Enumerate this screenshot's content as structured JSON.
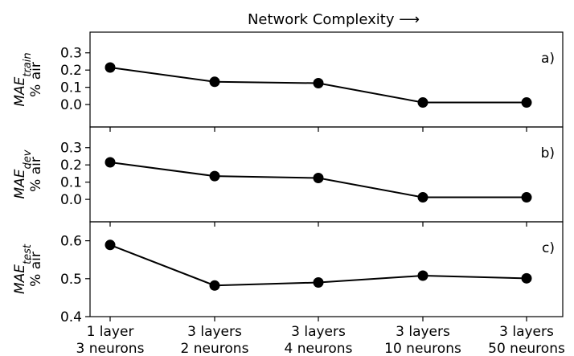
{
  "chart_data": {
    "type": "line",
    "title": "Network Complexity ⟶",
    "categories": [
      "1 layer\n3 neurons",
      "3 layers\n2 neurons",
      "3 layers\n4 neurons",
      "3 layers\n10 neurons",
      "3 layers\n50 neurons"
    ],
    "panels": [
      {
        "label": "a)",
        "ylabel_main": "MAE",
        "ylabel_sub": "train",
        "ylabel_unit": "% air",
        "values": [
          0.215,
          0.132,
          0.124,
          0.012,
          0.012
        ],
        "ylim": [
          -0.13,
          0.42
        ],
        "yticks": [
          0.0,
          0.1,
          0.2,
          0.3
        ],
        "ytick_labels": [
          "0.0",
          "0.1",
          "0.2",
          "0.3"
        ]
      },
      {
        "label": "b)",
        "ylabel_main": "MAE",
        "ylabel_sub": "dev",
        "ylabel_unit": "% air",
        "values": [
          0.215,
          0.135,
          0.124,
          0.012,
          0.012
        ],
        "ylim": [
          -0.13,
          0.42
        ],
        "yticks": [
          0.0,
          0.1,
          0.2,
          0.3
        ],
        "ytick_labels": [
          "0.0",
          "0.1",
          "0.2",
          "0.3"
        ]
      },
      {
        "label": "c)",
        "ylabel_main": "MAE",
        "ylabel_sub": "test",
        "ylabel_unit": "% air",
        "values": [
          0.589,
          0.482,
          0.49,
          0.508,
          0.501
        ],
        "ylim": [
          0.4,
          0.65
        ],
        "yticks": [
          0.4,
          0.5,
          0.6
        ],
        "ytick_labels": [
          "0.4",
          "0.5",
          "0.6"
        ]
      }
    ],
    "grid": false,
    "legend": "none",
    "line_color": "#000000",
    "marker_color": "#000000"
  }
}
